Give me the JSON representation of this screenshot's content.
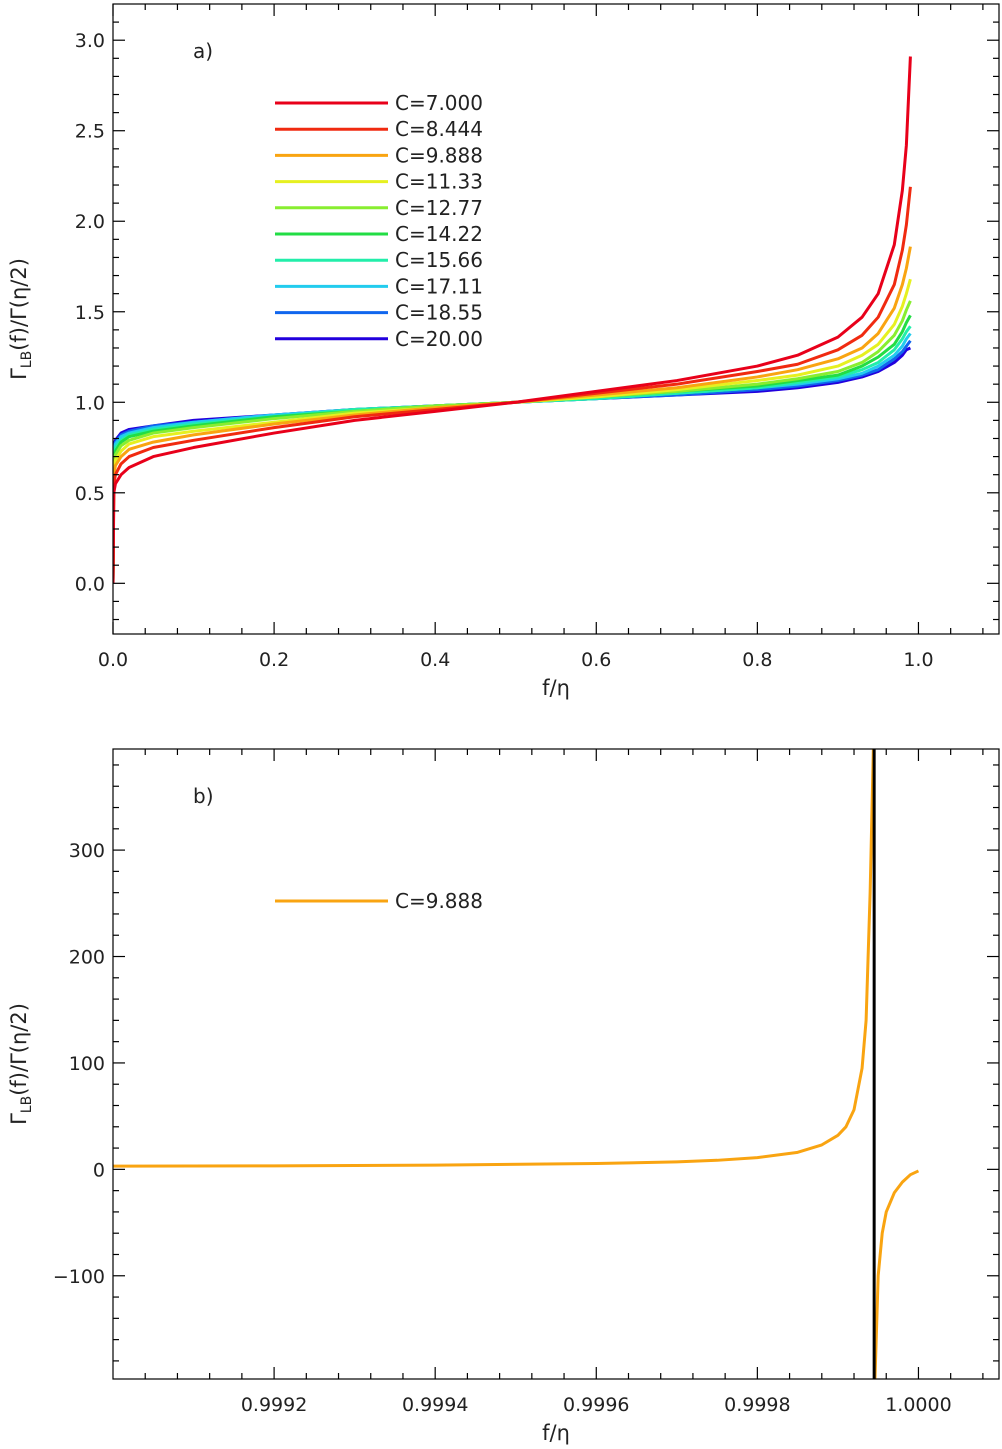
{
  "chart_data": [
    {
      "type": "line",
      "panel_label": "a)",
      "xlabel": "f/η",
      "ylabel": "Γ_LB(f)/Γ(η/2)",
      "ylabel_main": "Γ",
      "ylabel_sub": "LB",
      "ylabel_rest": "(f)/Γ(η/2)",
      "xlim": [
        0.0,
        1.1
      ],
      "ylim": [
        -0.28,
        3.2
      ],
      "xticks": [
        0.0,
        0.2,
        0.4,
        0.6,
        0.8,
        1.0
      ],
      "xtick_labels": [
        "0.0",
        "0.2",
        "0.4",
        "0.6",
        "0.8",
        "1.0"
      ],
      "yticks": [
        0.0,
        0.5,
        1.0,
        1.5,
        2.0,
        2.5,
        3.0
      ],
      "ytick_labels": [
        "0.0",
        "0.5",
        "1.0",
        "1.5",
        "2.0",
        "2.5",
        "3.0"
      ],
      "legend_position": "upper-left",
      "x": [
        0.0,
        0.001,
        0.003,
        0.01,
        0.02,
        0.05,
        0.1,
        0.2,
        0.3,
        0.4,
        0.5,
        0.6,
        0.7,
        0.8,
        0.85,
        0.9,
        0.93,
        0.95,
        0.97,
        0.98,
        0.985,
        0.99
      ],
      "series": [
        {
          "name": "C=7.000",
          "color": "#e8001a",
          "values": [
            0.0,
            0.5,
            0.55,
            0.6,
            0.64,
            0.7,
            0.75,
            0.83,
            0.9,
            0.95,
            1.0,
            1.06,
            1.12,
            1.2,
            1.26,
            1.36,
            1.47,
            1.6,
            1.87,
            2.17,
            2.42,
            2.91
          ]
        },
        {
          "name": "C=8.444",
          "color": "#f02a10",
          "values": [
            0.0,
            0.55,
            0.6,
            0.66,
            0.7,
            0.75,
            0.79,
            0.86,
            0.92,
            0.96,
            1.0,
            1.05,
            1.1,
            1.17,
            1.21,
            1.29,
            1.37,
            1.47,
            1.65,
            1.84,
            1.98,
            2.19
          ]
        },
        {
          "name": "C=9.888",
          "color": "#f9a411",
          "values": [
            0.0,
            0.6,
            0.65,
            0.7,
            0.74,
            0.78,
            0.82,
            0.88,
            0.93,
            0.97,
            1.0,
            1.04,
            1.08,
            1.14,
            1.18,
            1.24,
            1.3,
            1.38,
            1.52,
            1.65,
            1.74,
            1.86
          ]
        },
        {
          "name": "C=11.33",
          "color": "#e6f020",
          "values": [
            0.0,
            0.64,
            0.68,
            0.73,
            0.77,
            0.81,
            0.84,
            0.89,
            0.94,
            0.97,
            1.0,
            1.03,
            1.07,
            1.12,
            1.15,
            1.2,
            1.26,
            1.32,
            1.43,
            1.53,
            1.6,
            1.68
          ]
        },
        {
          "name": "C=12.77",
          "color": "#88ee30",
          "values": [
            0.0,
            0.67,
            0.71,
            0.76,
            0.79,
            0.83,
            0.86,
            0.91,
            0.95,
            0.98,
            1.0,
            1.03,
            1.06,
            1.1,
            1.13,
            1.17,
            1.22,
            1.28,
            1.37,
            1.45,
            1.51,
            1.56
          ]
        },
        {
          "name": "C=14.22",
          "color": "#22dd44",
          "values": [
            0.0,
            0.69,
            0.73,
            0.78,
            0.81,
            0.84,
            0.87,
            0.92,
            0.95,
            0.98,
            1.0,
            1.03,
            1.06,
            1.09,
            1.12,
            1.15,
            1.2,
            1.25,
            1.32,
            1.39,
            1.44,
            1.48
          ]
        },
        {
          "name": "C=15.66",
          "color": "#22eeaa",
          "values": [
            0.0,
            0.71,
            0.75,
            0.79,
            0.82,
            0.85,
            0.88,
            0.92,
            0.96,
            0.98,
            1.0,
            1.02,
            1.05,
            1.08,
            1.11,
            1.14,
            1.18,
            1.22,
            1.29,
            1.35,
            1.39,
            1.42
          ]
        },
        {
          "name": "C=17.11",
          "color": "#22ccee",
          "values": [
            0.0,
            0.73,
            0.77,
            0.81,
            0.83,
            0.86,
            0.89,
            0.93,
            0.96,
            0.98,
            1.0,
            1.02,
            1.05,
            1.08,
            1.1,
            1.13,
            1.16,
            1.2,
            1.26,
            1.31,
            1.35,
            1.38
          ]
        },
        {
          "name": "C=18.55",
          "color": "#1066ee",
          "values": [
            0.0,
            0.74,
            0.78,
            0.82,
            0.84,
            0.87,
            0.89,
            0.93,
            0.96,
            0.98,
            1.0,
            1.02,
            1.04,
            1.07,
            1.09,
            1.12,
            1.15,
            1.18,
            1.24,
            1.28,
            1.31,
            1.34
          ]
        },
        {
          "name": "C=20.00",
          "color": "#2200dd",
          "values": [
            0.0,
            0.76,
            0.79,
            0.83,
            0.85,
            0.87,
            0.9,
            0.93,
            0.96,
            0.98,
            1.0,
            1.02,
            1.04,
            1.06,
            1.08,
            1.11,
            1.14,
            1.17,
            1.22,
            1.26,
            1.29,
            1.3
          ]
        }
      ]
    },
    {
      "type": "line",
      "panel_label": "b)",
      "xlabel": "f/η",
      "ylabel": "Γ_LB(f)/Γ(η/2)",
      "ylabel_main": "Γ",
      "ylabel_sub": "LB",
      "ylabel_rest": "(f)/Γ(η/2)",
      "xlim": [
        0.999,
        1.0001
      ],
      "ylim": [
        -197,
        395
      ],
      "xticks": [
        0.9992,
        0.9994,
        0.9996,
        0.9998,
        1.0
      ],
      "xtick_labels": [
        "0.9992",
        "0.9994",
        "0.9996",
        "0.9998",
        "1.0000"
      ],
      "yticks": [
        -100,
        0,
        100,
        200,
        300
      ],
      "ytick_labels": [
        "−100",
        "0",
        "100",
        "200",
        "300"
      ],
      "legend_position": "upper-left",
      "asymptote_x": 0.999945,
      "asymptote_color": "#000000",
      "series": [
        {
          "name": "C=9.888",
          "color": "#f9a411",
          "segments": [
            {
              "x": [
                0.999,
                0.9992,
                0.9994,
                0.9996,
                0.9997,
                0.99975,
                0.9998,
                0.99985,
                0.99988,
                0.9999,
                0.99991,
                0.99992,
                0.99993,
                0.999935,
                0.99994,
                0.999944
              ],
              "y": [
                3.0,
                3.3,
                4.0,
                5.5,
                7.0,
                8.5,
                11.0,
                16.0,
                23.0,
                32.0,
                40.0,
                56.0,
                95.0,
                140.0,
                260.0,
                395.0
              ]
            },
            {
              "x": [
                0.999946,
                0.99995,
                0.999955,
                0.99996,
                0.99997,
                0.99998,
                0.99999,
                1.0
              ],
              "y": [
                -197.0,
                -100.0,
                -60.0,
                -40.0,
                -22.0,
                -12.0,
                -5.0,
                -1.5
              ]
            }
          ]
        }
      ]
    }
  ]
}
